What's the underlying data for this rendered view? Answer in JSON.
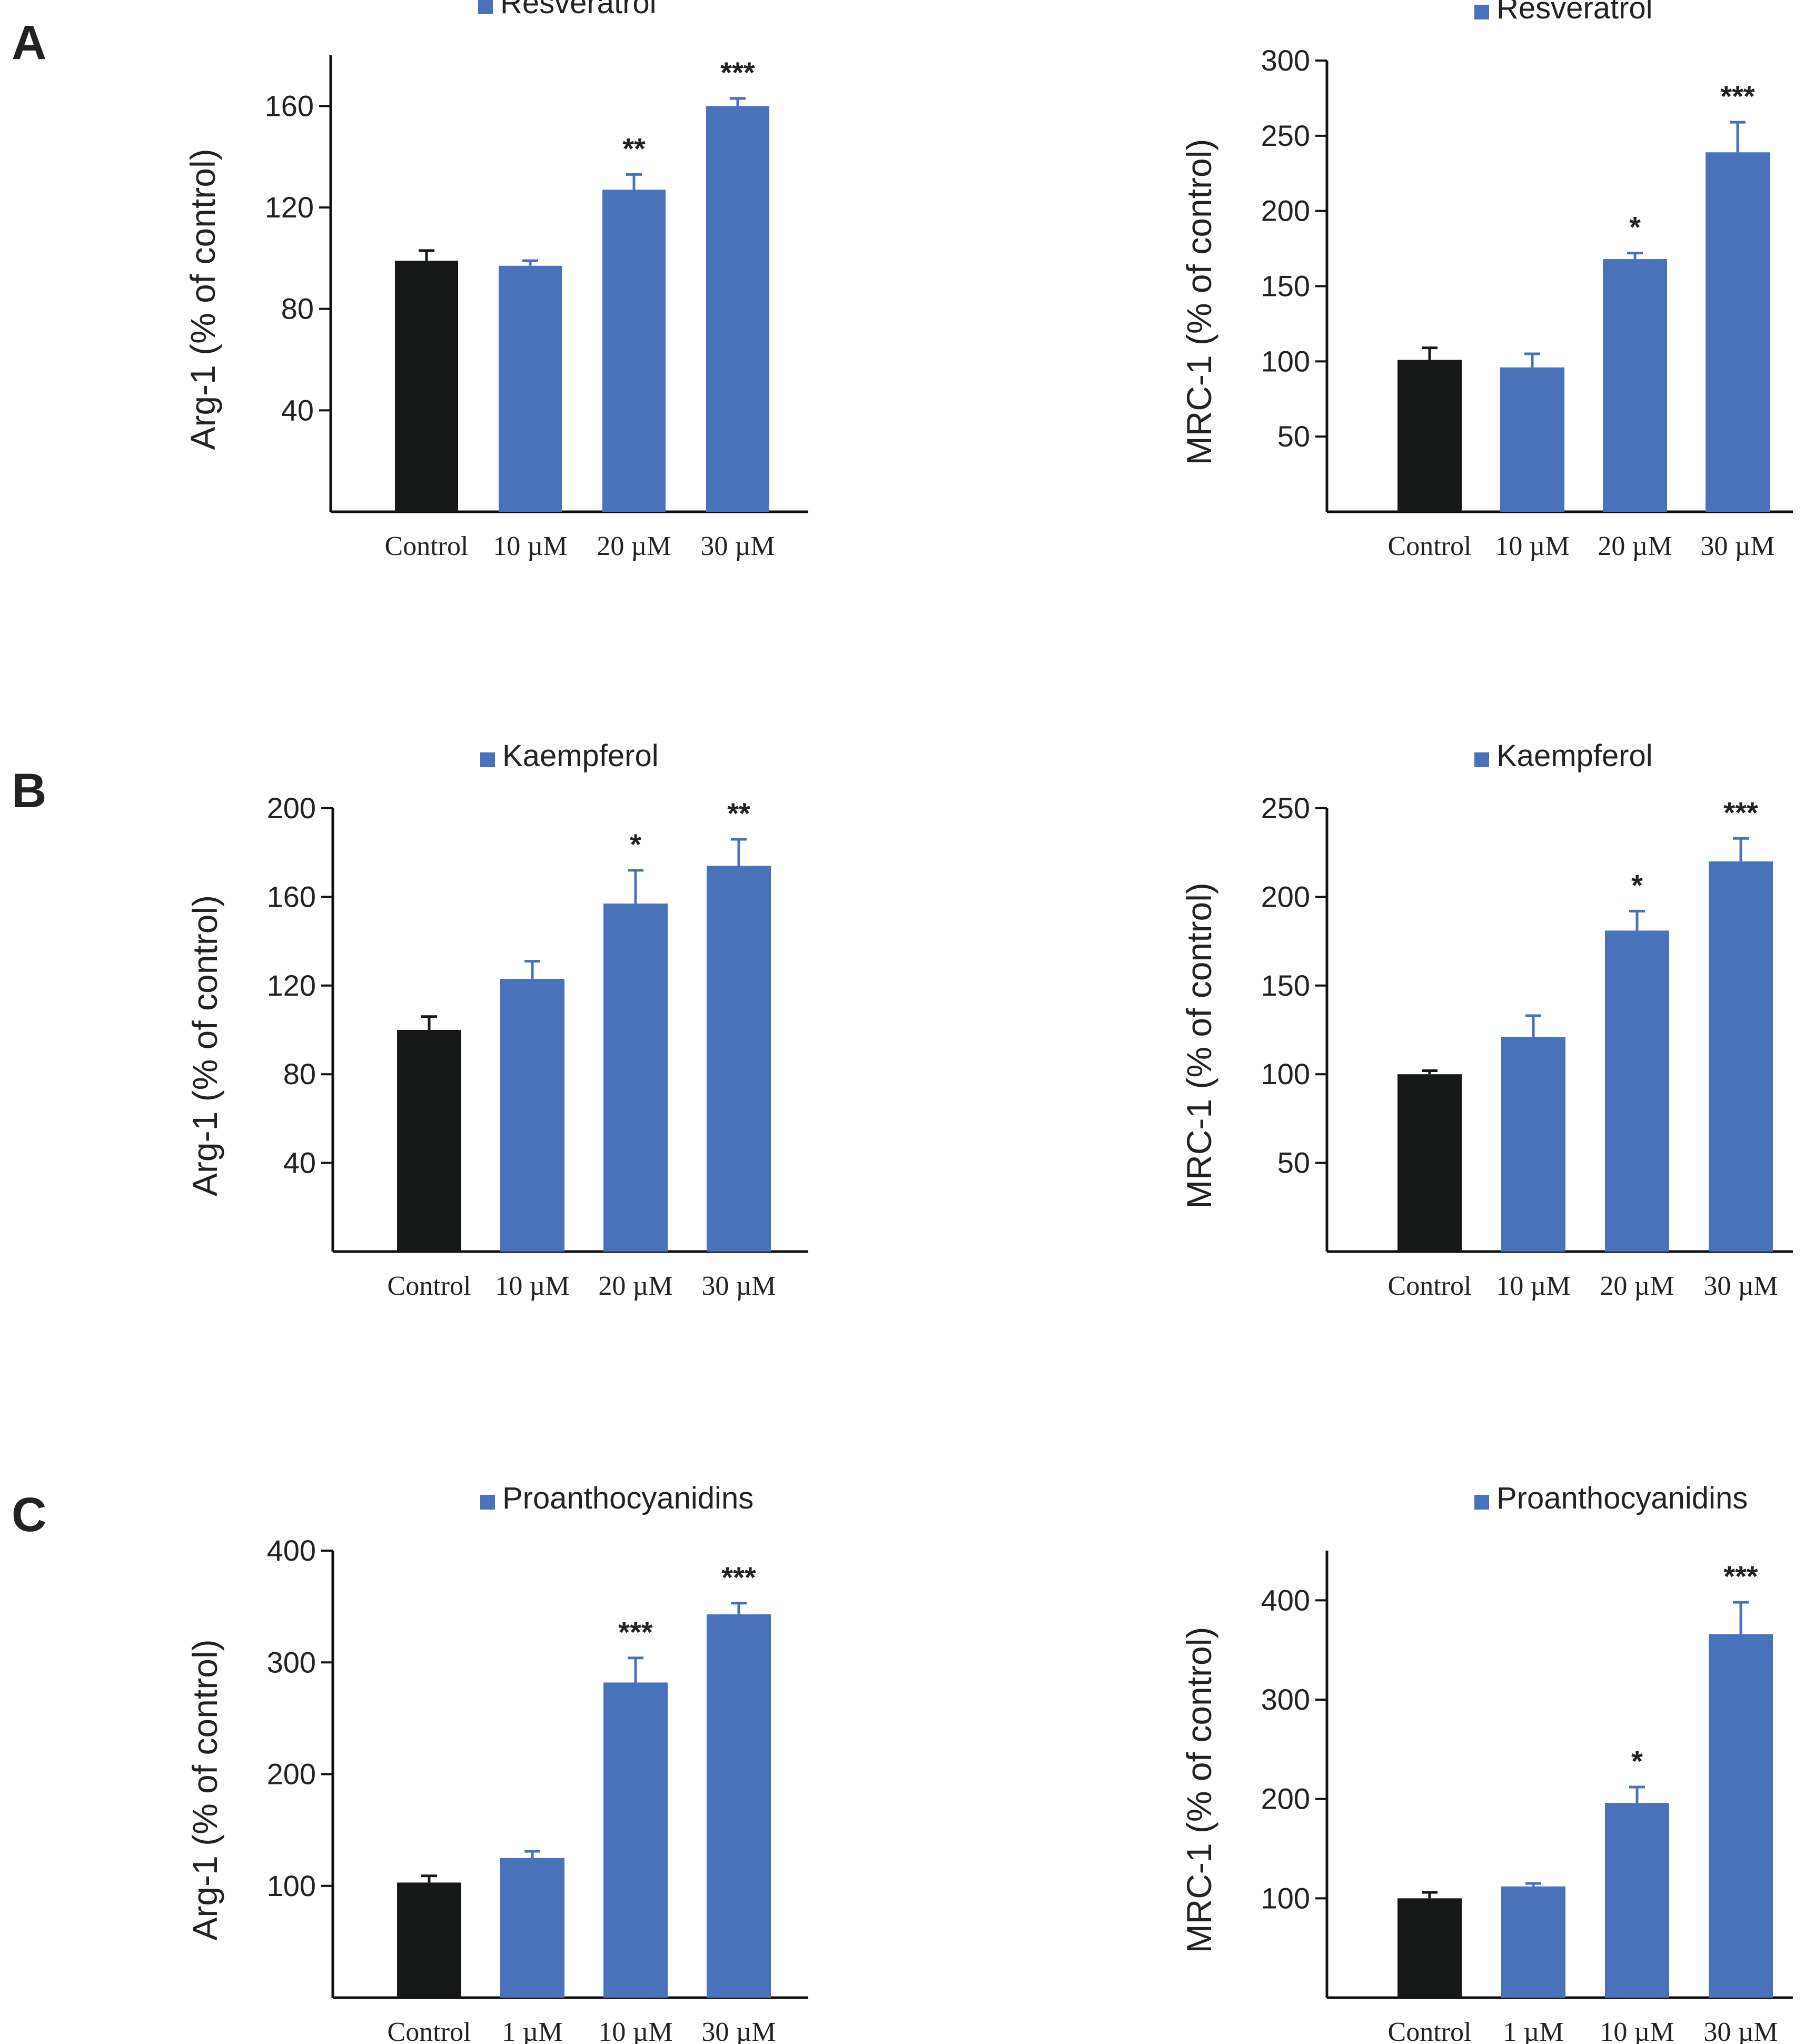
{
  "colors": {
    "control": "#161818",
    "treated": "#4a72bb",
    "axis": "#111111"
  },
  "panels": [
    {
      "letter": "A"
    },
    {
      "letter": "B"
    },
    {
      "letter": "C"
    }
  ],
  "chart_data": [
    {
      "type": "bar",
      "panel": "A",
      "legend": "Resveratrol",
      "ylabel": "Arg-1 (% of control)",
      "categories": [
        "Control",
        "10 µM",
        "20 µM",
        "30 µM"
      ],
      "values": [
        99,
        97,
        127,
        160
      ],
      "errors": [
        4,
        2,
        6,
        3
      ],
      "significance": [
        "",
        "",
        "**",
        "***"
      ],
      "yticks": [
        40,
        80,
        120,
        160
      ],
      "ylim": [
        0,
        180
      ]
    },
    {
      "type": "bar",
      "panel": "A",
      "legend": "Resveratrol",
      "ylabel": "MRC-1 (% of control)",
      "categories": [
        "Control",
        "10 µM",
        "20 µM",
        "30 µM"
      ],
      "values": [
        101,
        96,
        168,
        239
      ],
      "errors": [
        8,
        9,
        4,
        20
      ],
      "significance": [
        "",
        "",
        "*",
        "***"
      ],
      "yticks": [
        50,
        100,
        150,
        200,
        250,
        300
      ],
      "ylim": [
        0,
        300
      ]
    },
    {
      "type": "bar",
      "panel": "B",
      "legend": "Kaempferol",
      "ylabel": "Arg-1 (% of control)",
      "categories": [
        "Control",
        "10 µM",
        "20 µM",
        "30 µM"
      ],
      "values": [
        100,
        123,
        157,
        174
      ],
      "errors": [
        6,
        8,
        15,
        12
      ],
      "significance": [
        "",
        "",
        "*",
        "**"
      ],
      "yticks": [
        40,
        80,
        120,
        160,
        200
      ],
      "ylim": [
        0,
        200
      ]
    },
    {
      "type": "bar",
      "panel": "B",
      "legend": "Kaempferol",
      "ylabel": "MRC-1 (% of control)",
      "categories": [
        "Control",
        "10 µM",
        "20 µM",
        "30 µM"
      ],
      "values": [
        100,
        121,
        181,
        220
      ],
      "errors": [
        2,
        12,
        11,
        13
      ],
      "significance": [
        "",
        "",
        "*",
        "***"
      ],
      "yticks": [
        50,
        100,
        150,
        200,
        250
      ],
      "ylim": [
        0,
        250
      ]
    },
    {
      "type": "bar",
      "panel": "C",
      "legend": "Proanthocyanidins",
      "ylabel": "Arg-1 (% of control)",
      "categories": [
        "Control",
        "1 µM",
        "10 µM",
        "30 µM"
      ],
      "values": [
        103,
        125,
        282,
        343
      ],
      "errors": [
        6,
        6,
        22,
        10
      ],
      "significance": [
        "",
        "",
        "***",
        "***"
      ],
      "yticks": [
        100,
        200,
        300,
        400
      ],
      "ylim": [
        0,
        400
      ]
    },
    {
      "type": "bar",
      "panel": "C",
      "legend": "Proanthocyanidins",
      "ylabel": "MRC-1 (% of control)",
      "categories": [
        "Control",
        "1 µM",
        "10 µM",
        "30 µM"
      ],
      "values": [
        100,
        112,
        196,
        366
      ],
      "errors": [
        6,
        3,
        16,
        32
      ],
      "significance": [
        "",
        "",
        "*",
        "***"
      ],
      "yticks": [
        100,
        200,
        300,
        400
      ],
      "ylim": [
        0,
        450
      ]
    }
  ]
}
